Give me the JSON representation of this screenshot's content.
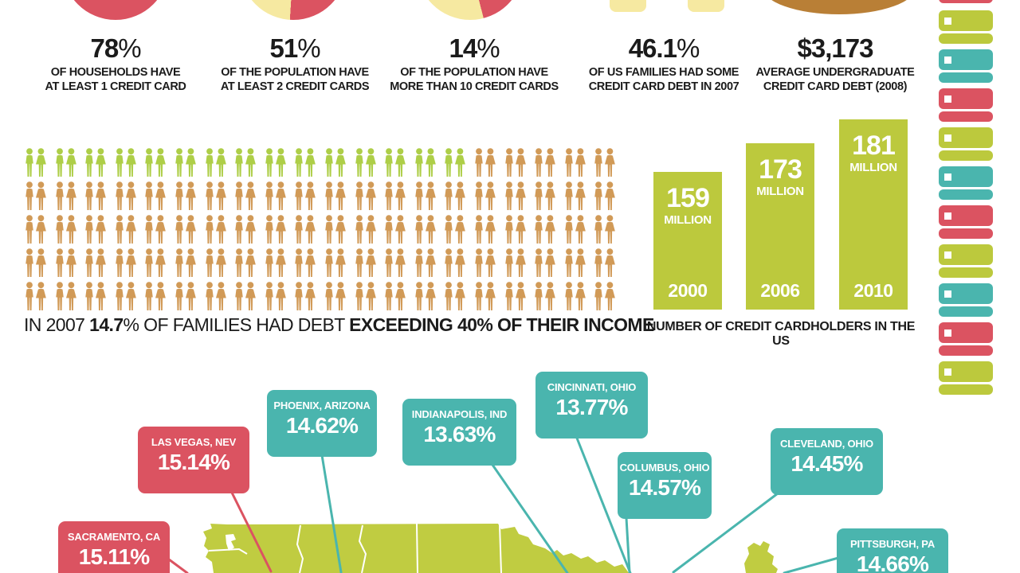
{
  "palette": {
    "red": "#DB5361",
    "teal": "#4AB5AE",
    "bar_green": "#BCC93D",
    "map_green": "#C0CC41",
    "people_green": "#AECE48",
    "people_orange": "#D19A57",
    "pale_yellow": "#F6E9A1",
    "brown": "#B97F36",
    "text": "#1B1B1B"
  },
  "stats": [
    {
      "num": "78",
      "suffix": "%",
      "line1": "OF HOUSEHOLDS HAVE",
      "line2": "AT LEAST 1 CREDIT CARD"
    },
    {
      "num": "51",
      "suffix": "%",
      "line1": "OF THE POPULATION HAVE",
      "line2": "AT LEAST 2 CREDIT CARDS"
    },
    {
      "num": "14",
      "suffix": "%",
      "line1": "OF THE POPULATION HAVE",
      "line2": "MORE THAN 10 CREDIT CARDS"
    },
    {
      "num": "46.1",
      "suffix": "%",
      "line1": "OF US FAMILIES HAD SOME",
      "line2": "CREDIT CARD DEBT IN 2007"
    },
    {
      "num": "$3,173",
      "suffix": "",
      "line1": "AVERAGE UNDERGRADUATE",
      "line2": "CREDIT CARD DEBT (2008)"
    }
  ],
  "family_pictogram": {
    "rows": 5,
    "per_row": 20,
    "green_count": 15,
    "caption_parts": [
      {
        "text": "IN 2007 ",
        "bold": false
      },
      {
        "text": "14.7",
        "bold": true
      },
      {
        "text": "% OF FAMILIES HAD DEBT ",
        "bold": false
      },
      {
        "text": "EXCEEDING 40% OF THEIR INCOME",
        "bold": true
      }
    ]
  },
  "cardholders_chart": {
    "bars": [
      {
        "value": "159",
        "unit": "MILLION",
        "year": "2000"
      },
      {
        "value": "173",
        "unit": "MILLION",
        "year": "2006"
      },
      {
        "value": "181",
        "unit": "MILLION",
        "year": "2010"
      }
    ],
    "caption": "NUMBER OF CREDIT CARDHOLDERS IN THE US"
  },
  "card_strip": {
    "cards": [
      {
        "color": "red",
        "partial": true
      },
      {
        "color": "green"
      },
      {
        "color": "teal"
      },
      {
        "color": "red"
      },
      {
        "color": "green"
      },
      {
        "color": "teal"
      },
      {
        "color": "red"
      },
      {
        "color": "green"
      },
      {
        "color": "teal"
      },
      {
        "color": "red"
      },
      {
        "color": "green"
      }
    ]
  },
  "map": {
    "labels": [
      {
        "city": "SACRAMENTO, CA",
        "value": "15.11%",
        "color": "red"
      },
      {
        "city": "LAS VEGAS, NEV",
        "value": "15.14%",
        "color": "red"
      },
      {
        "city": "PHOENIX, ARIZONA",
        "value": "14.62%",
        "color": "teal"
      },
      {
        "city": "INDIANAPOLIS, IND",
        "value": "13.63%",
        "color": "teal"
      },
      {
        "city": "CINCINNATI, OHIO",
        "value": "13.77%",
        "color": "teal"
      },
      {
        "city": "COLUMBUS, OHIO",
        "value": "14.57%",
        "color": "teal"
      },
      {
        "city": "CLEVELAND, OHIO",
        "value": "14.45%",
        "color": "teal"
      },
      {
        "city": "PITTSBURGH, PA",
        "value": "14.66%",
        "color": "teal"
      }
    ]
  },
  "chart_data": [
    {
      "type": "pie",
      "stat": "78%",
      "caption": "OF HOUSEHOLDS HAVE AT LEAST 1 CREDIT CARD",
      "slices": [
        {
          "label": "have at least 1 credit card",
          "value": 78
        },
        {
          "label": "other",
          "value": 22
        }
      ],
      "colors": [
        "#DB5361",
        "#F6E9A1"
      ]
    },
    {
      "type": "pie",
      "stat": "51%",
      "caption": "OF THE POPULATION HAVE AT LEAST 2 CREDIT CARDS",
      "slices": [
        {
          "label": "have at least 2 credit cards",
          "value": 51
        },
        {
          "label": "other",
          "value": 49
        }
      ],
      "colors": [
        "#DB5361",
        "#F6E9A1"
      ]
    },
    {
      "type": "pie",
      "stat": "14%",
      "caption": "OF THE POPULATION HAVE MORE THAN 10 CREDIT CARDS",
      "slices": [
        {
          "label": "have more than 10 credit cards",
          "value": 14
        },
        {
          "label": "other",
          "value": 86
        }
      ],
      "colors": [
        "#DB5361",
        "#F6E9A1"
      ]
    },
    {
      "type": "stat",
      "stat": "46.1%",
      "caption": "OF US FAMILIES HAD SOME CREDIT CARD DEBT IN 2007"
    },
    {
      "type": "stat",
      "stat": "$3,173",
      "caption": "AVERAGE UNDERGRADUATE CREDIT CARD DEBT (2008)"
    },
    {
      "type": "pictogram",
      "caption": "IN 2007 14.7% OF FAMILIES HAD DEBT EXCEEDING 40% OF THEIR INCOME",
      "icon": "couple",
      "total_icons": 100,
      "highlighted_icons": 15,
      "highlight_color": "#AECE48",
      "base_color": "#D19A57"
    },
    {
      "type": "bar",
      "title": "NUMBER OF CREDIT CARDHOLDERS IN THE US",
      "unit": "MILLION",
      "categories": [
        "2000",
        "2006",
        "2010"
      ],
      "values": [
        159,
        173,
        181
      ],
      "ylim": [
        0,
        200
      ],
      "bar_color": "#BCC93D",
      "label_position": "inside",
      "grid": false
    },
    {
      "type": "map",
      "region": "United States",
      "points": [
        {
          "city": "SACRAMENTO, CA",
          "value": 15.11
        },
        {
          "city": "LAS VEGAS, NEV",
          "value": 15.14
        },
        {
          "city": "PHOENIX, ARIZONA",
          "value": 14.62
        },
        {
          "city": "INDIANAPOLIS, IND",
          "value": 13.63
        },
        {
          "city": "CINCINNATI, OHIO",
          "value": 13.77
        },
        {
          "city": "COLUMBUS, OHIO",
          "value": 14.57
        },
        {
          "city": "CLEVELAND, OHIO",
          "value": 14.45
        },
        {
          "city": "PITTSBURGH, PA",
          "value": 14.66
        }
      ]
    }
  ]
}
